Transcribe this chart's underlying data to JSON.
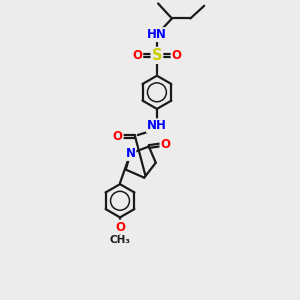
{
  "bg_color": "#ececec",
  "bond_color": "#1a1a1a",
  "N_color": "#0000ff",
  "O_color": "#ff0000",
  "S_color": "#cccc00",
  "line_width": 1.6,
  "font_size": 8.5,
  "figsize": [
    3.0,
    3.0
  ],
  "dpi": 100,
  "xlim": [
    0,
    10
  ],
  "ylim": [
    0,
    13
  ]
}
